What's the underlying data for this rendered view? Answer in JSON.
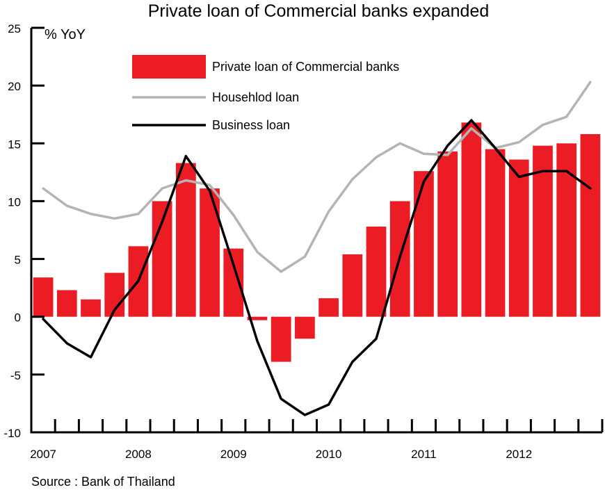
{
  "chart_data": {
    "type": "bar",
    "title": "Private loan of Commercial banks expanded",
    "ylabel": "% YoY",
    "ylim": [
      -10,
      25
    ],
    "yticks": [
      -10,
      -5,
      0,
      5,
      10,
      15,
      20,
      25
    ],
    "x_ticks": [
      "2007",
      "2008",
      "2009",
      "2010",
      "2011",
      "2012"
    ],
    "x": [
      "2007Q1",
      "2007Q2",
      "2007Q3",
      "2007Q4",
      "2008Q1",
      "2008Q2",
      "2008Q3",
      "2008Q4",
      "2009Q1",
      "2009Q2",
      "2009Q3",
      "2009Q4",
      "2010Q1",
      "2010Q2",
      "2010Q3",
      "2010Q4",
      "2011Q1",
      "2011Q2",
      "2011Q3",
      "2011Q4",
      "2012Q1",
      "2012Q2",
      "2012Q3",
      "2012Q4"
    ],
    "series": [
      {
        "name": "Private loan of Commercial banks",
        "kind": "bar",
        "color": "#ec1c24",
        "values": [
          3.4,
          2.3,
          1.5,
          3.8,
          6.1,
          10.0,
          13.3,
          11.1,
          5.9,
          -0.3,
          -3.9,
          -1.9,
          1.6,
          5.4,
          7.8,
          10.0,
          12.6,
          14.3,
          16.8,
          14.5,
          13.6,
          14.8,
          15.0,
          15.8
        ]
      },
      {
        "name": "Househlod loan",
        "kind": "line",
        "color": "#b4b4b4",
        "values": [
          11.1,
          9.6,
          8.9,
          8.5,
          8.9,
          11.1,
          11.8,
          11.4,
          8.8,
          5.6,
          3.9,
          5.2,
          9.1,
          11.9,
          13.8,
          15.0,
          14.1,
          14.0,
          16.3,
          14.6,
          15.1,
          16.6,
          17.3,
          20.3
        ]
      },
      {
        "name": "Business loan",
        "kind": "line",
        "color": "#000000",
        "values": [
          -0.2,
          -2.3,
          -3.5,
          0.6,
          3.1,
          8.2,
          13.9,
          10.9,
          4.5,
          -2.1,
          -7.1,
          -8.5,
          -7.6,
          -3.9,
          -1.9,
          5.2,
          11.7,
          14.8,
          17.0,
          14.6,
          12.1,
          12.6,
          12.6,
          11.1
        ]
      }
    ],
    "legend_position": "top-left",
    "grid": false
  },
  "source": "Source : Bank of Thailand"
}
